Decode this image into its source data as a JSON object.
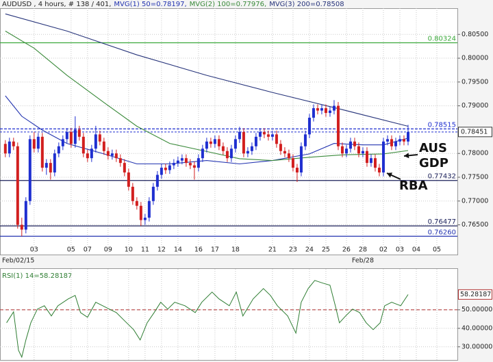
{
  "chart_data": [
    {
      "type": "candlestick",
      "title": "AUDUSD , 4 hours, # 138 / 401,",
      "up_color": "#1f2fd0",
      "down_color": "#d21f1f",
      "ohlc": [
        [
          0.782,
          0.7828,
          0.7792,
          0.78
        ],
        [
          0.78,
          0.7833,
          0.7792,
          0.7825
        ],
        [
          0.7825,
          0.7833,
          0.7807,
          0.7815
        ],
        [
          0.7815,
          0.7823,
          0.7642,
          0.765
        ],
        [
          0.765,
          0.7665,
          0.7626,
          0.764
        ],
        [
          0.764,
          0.7708,
          0.7632,
          0.77
        ],
        [
          0.77,
          0.7838,
          0.7692,
          0.783
        ],
        [
          0.783,
          0.7845,
          0.7802,
          0.781
        ],
        [
          0.781,
          0.7843,
          0.7802,
          0.7835
        ],
        [
          0.7835,
          0.7843,
          0.7762,
          0.777
        ],
        [
          0.777,
          0.7788,
          0.7755,
          0.778
        ],
        [
          0.778,
          0.7788,
          0.7745,
          0.776
        ],
        [
          0.776,
          0.7808,
          0.7752,
          0.78
        ],
        [
          0.78,
          0.7823,
          0.7792,
          0.7815
        ],
        [
          0.7815,
          0.7838,
          0.7807,
          0.783
        ],
        [
          0.783,
          0.7853,
          0.7822,
          0.7845
        ],
        [
          0.7845,
          0.7853,
          0.7812,
          0.782
        ],
        [
          0.782,
          0.7878,
          0.7812,
          0.785
        ],
        [
          0.785,
          0.7858,
          0.7827,
          0.7835
        ],
        [
          0.7835,
          0.7843,
          0.7792,
          0.78
        ],
        [
          0.78,
          0.7808,
          0.7782,
          0.779
        ],
        [
          0.779,
          0.7818,
          0.7782,
          0.781
        ],
        [
          0.781,
          0.7858,
          0.7802,
          0.784
        ],
        [
          0.784,
          0.7848,
          0.7817,
          0.7825
        ],
        [
          0.7825,
          0.7833,
          0.7797,
          0.7805
        ],
        [
          0.7805,
          0.7813,
          0.7787,
          0.7795
        ],
        [
          0.7795,
          0.7808,
          0.7787,
          0.78
        ],
        [
          0.78,
          0.7808,
          0.7782,
          0.779
        ],
        [
          0.779,
          0.7798,
          0.7772,
          0.778
        ],
        [
          0.778,
          0.7788,
          0.7752,
          0.776
        ],
        [
          0.776,
          0.7768,
          0.7722,
          0.773
        ],
        [
          0.773,
          0.7738,
          0.7692,
          0.77
        ],
        [
          0.77,
          0.7708,
          0.7682,
          0.769
        ],
        [
          0.769,
          0.7698,
          0.7648,
          0.766
        ],
        [
          0.766,
          0.7673,
          0.765,
          0.7665
        ],
        [
          0.7665,
          0.7708,
          0.7657,
          0.77
        ],
        [
          0.77,
          0.7738,
          0.7692,
          0.773
        ],
        [
          0.773,
          0.7763,
          0.7722,
          0.7755
        ],
        [
          0.7755,
          0.7778,
          0.7747,
          0.777
        ],
        [
          0.777,
          0.7778,
          0.7757,
          0.7765
        ],
        [
          0.7765,
          0.7783,
          0.7757,
          0.7775
        ],
        [
          0.7775,
          0.7788,
          0.7767,
          0.778
        ],
        [
          0.778,
          0.7793,
          0.7772,
          0.7785
        ],
        [
          0.7785,
          0.7798,
          0.7777,
          0.779
        ],
        [
          0.779,
          0.7798,
          0.7772,
          0.778
        ],
        [
          0.778,
          0.7788,
          0.7767,
          0.7775
        ],
        [
          0.7775,
          0.7783,
          0.7745,
          0.777
        ],
        [
          0.777,
          0.7798,
          0.7762,
          0.779
        ],
        [
          0.779,
          0.7818,
          0.7782,
          0.781
        ],
        [
          0.781,
          0.7833,
          0.7802,
          0.7825
        ],
        [
          0.7825,
          0.7833,
          0.7812,
          0.782
        ],
        [
          0.782,
          0.7838,
          0.7812,
          0.783
        ],
        [
          0.783,
          0.7838,
          0.7807,
          0.7815
        ],
        [
          0.7815,
          0.7823,
          0.7797,
          0.7805
        ],
        [
          0.7805,
          0.7813,
          0.7782,
          0.779
        ],
        [
          0.779,
          0.7818,
          0.7782,
          0.781
        ],
        [
          0.781,
          0.7838,
          0.7802,
          0.783
        ],
        [
          0.783,
          0.7856,
          0.7822,
          0.7845
        ],
        [
          0.7845,
          0.7853,
          0.7792,
          0.78
        ],
        [
          0.78,
          0.7813,
          0.7792,
          0.7805
        ],
        [
          0.7805,
          0.7823,
          0.7797,
          0.7815
        ],
        [
          0.7815,
          0.7843,
          0.7807,
          0.7835
        ],
        [
          0.7835,
          0.7853,
          0.7827,
          0.7845
        ],
        [
          0.7845,
          0.7853,
          0.7832,
          0.784
        ],
        [
          0.784,
          0.7848,
          0.7827,
          0.7835
        ],
        [
          0.7835,
          0.7848,
          0.7827,
          0.784
        ],
        [
          0.784,
          0.7848,
          0.7812,
          0.782
        ],
        [
          0.782,
          0.7828,
          0.7797,
          0.7805
        ],
        [
          0.7805,
          0.7813,
          0.7792,
          0.78
        ],
        [
          0.78,
          0.7808,
          0.7782,
          0.779
        ],
        [
          0.779,
          0.7798,
          0.7762,
          0.777
        ],
        [
          0.777,
          0.7778,
          0.774,
          0.776
        ],
        [
          0.776,
          0.7823,
          0.7752,
          0.7815
        ],
        [
          0.7815,
          0.7848,
          0.7807,
          0.784
        ],
        [
          0.784,
          0.7883,
          0.7832,
          0.7875
        ],
        [
          0.7875,
          0.7903,
          0.7867,
          0.7895
        ],
        [
          0.7895,
          0.7903,
          0.7882,
          0.789
        ],
        [
          0.789,
          0.7903,
          0.7882,
          0.7895
        ],
        [
          0.7895,
          0.7903,
          0.7877,
          0.7885
        ],
        [
          0.7885,
          0.7898,
          0.7877,
          0.789
        ],
        [
          0.789,
          0.7912,
          0.7882,
          0.79
        ],
        [
          0.79,
          0.7908,
          0.7807,
          0.7815
        ],
        [
          0.7815,
          0.7823,
          0.7792,
          0.78
        ],
        [
          0.78,
          0.7818,
          0.7792,
          0.781
        ],
        [
          0.781,
          0.7833,
          0.7802,
          0.7825
        ],
        [
          0.7825,
          0.7833,
          0.7807,
          0.7815
        ],
        [
          0.7815,
          0.7823,
          0.7792,
          0.78
        ],
        [
          0.78,
          0.7813,
          0.7792,
          0.7805
        ],
        [
          0.7805,
          0.7813,
          0.7772,
          0.778
        ],
        [
          0.778,
          0.7798,
          0.7772,
          0.779
        ],
        [
          0.779,
          0.7798,
          0.7762,
          0.777
        ],
        [
          0.777,
          0.7778,
          0.7752,
          0.776
        ],
        [
          0.776,
          0.7833,
          0.7752,
          0.7825
        ],
        [
          0.7825,
          0.7838,
          0.7817,
          0.783
        ],
        [
          0.783,
          0.7838,
          0.7807,
          0.7815
        ],
        [
          0.7815,
          0.7833,
          0.7807,
          0.7825
        ],
        [
          0.7825,
          0.7838,
          0.7817,
          0.783
        ],
        [
          0.783,
          0.7838,
          0.7817,
          0.7825
        ],
        [
          0.7825,
          0.786,
          0.7817,
          0.7845
        ]
      ],
      "overlays": [
        {
          "name": "MVG(1) 50=0.78197,",
          "color": "#2233b0",
          "x": [
            0,
            4,
            9,
            15,
            24,
            32,
            40,
            49,
            57,
            65,
            74,
            80,
            87,
            92,
            98
          ],
          "values": [
            0.7921,
            0.7878,
            0.7849,
            0.7821,
            0.7799,
            0.7778,
            0.7778,
            0.7785,
            0.7778,
            0.7785,
            0.7799,
            0.7821,
            0.7818,
            0.7818,
            0.7832
          ]
        },
        {
          "name": "MVG(2) 100=0.77976,",
          "color": "#3a8a3a",
          "x": [
            0,
            7,
            15,
            24,
            32,
            40,
            49,
            57,
            65,
            74,
            82,
            92,
            98
          ],
          "values": [
            0.8057,
            0.8021,
            0.7964,
            0.7907,
            0.7857,
            0.7821,
            0.7804,
            0.7789,
            0.7785,
            0.7792,
            0.7797,
            0.7799,
            0.7806
          ]
        },
        {
          "name": "MVG(3) 200=0.78508",
          "color": "#26337a",
          "x": [
            0,
            15,
            32,
            49,
            65,
            82,
            98
          ],
          "values": [
            0.8093,
            0.8057,
            0.8007,
            0.7964,
            0.7928,
            0.7892,
            0.7857
          ]
        }
      ],
      "levels": [
        {
          "value": 0.80324,
          "color": "#3aa83a",
          "style": "solid"
        },
        {
          "value": 0.78515,
          "color": "#1f2fd0",
          "style": "dashed"
        },
        {
          "value": 0.77432,
          "color": "#1a1f5a",
          "style": "solid"
        },
        {
          "value": 0.76477,
          "color": "#1a1f5a",
          "style": "solid"
        },
        {
          "value": 0.7626,
          "label": "0.76260",
          "color": "#2233b0",
          "style": "solid"
        }
      ],
      "current": 0.78451,
      "xlim": [
        -1.3,
        110
      ],
      "ylim": [
        0.7612,
        0.8105
      ],
      "yticks": [
        {
          "value": 0.805,
          "label": "0.80500"
        },
        {
          "value": 0.8,
          "label": "0.80000"
        },
        {
          "value": 0.795,
          "label": "0.79500"
        },
        {
          "value": 0.79,
          "label": "0.79000"
        },
        {
          "value": 0.78,
          "label": "0.78000"
        },
        {
          "value": 0.775,
          "label": "0.77500"
        },
        {
          "value": 0.77,
          "label": "0.77000"
        },
        {
          "value": 0.765,
          "label": "0.76500"
        }
      ],
      "xticks": [
        {
          "value": 7,
          "label": "03"
        },
        {
          "value": 16,
          "label": "05"
        },
        {
          "value": 20,
          "label": "07"
        },
        {
          "value": 25,
          "label": "09"
        },
        {
          "value": 30,
          "label": "10"
        },
        {
          "value": 34,
          "label": "11"
        },
        {
          "value": 38,
          "label": "12"
        },
        {
          "value": 42,
          "label": "14"
        },
        {
          "value": 47,
          "label": "16"
        },
        {
          "value": 51,
          "label": "17"
        },
        {
          "value": 56,
          "label": "18"
        },
        {
          "value": 65,
          "label": "21"
        },
        {
          "value": 70,
          "label": "23"
        },
        {
          "value": 74,
          "label": "24"
        },
        {
          "value": 78,
          "label": "25"
        },
        {
          "value": 83,
          "label": "26"
        },
        {
          "value": 87,
          "label": "28"
        },
        {
          "value": 92,
          "label": "02"
        },
        {
          "value": 96,
          "label": "03"
        },
        {
          "value": 100,
          "label": "04"
        },
        {
          "value": 105,
          "label": "05"
        }
      ],
      "date_labels": [
        {
          "value": 0,
          "label": "Feb/02/15"
        },
        {
          "value": 87,
          "label": "Feb/28"
        }
      ],
      "annotations": [
        {
          "lines": [
            "AUS",
            "GDP"
          ]
        },
        {
          "lines": [
            "RBA"
          ]
        }
      ],
      "grid": true
    },
    {
      "type": "line",
      "title": "RSI(1) 14=58.28187",
      "series": [
        {
          "color": "#2e7d32",
          "x": [
            0.3,
            2,
            3.2,
            4,
            5,
            6.2,
            7.8,
            9.5,
            11.2,
            12.8,
            15.3,
            17,
            18.3,
            20,
            22,
            23.7,
            25.3,
            27,
            29.5,
            31.2,
            32.8,
            34.5,
            36.2,
            37.8,
            39.5,
            41.2,
            43.7,
            46.2,
            47.8,
            50.3,
            52,
            54.5,
            56.2,
            57.8,
            60.3,
            62.8,
            64.5,
            66.2,
            68.7,
            70.7,
            72,
            73.7,
            75.3,
            77.3,
            79,
            80.3,
            81.3,
            82.8,
            84.5,
            86.2,
            87.8,
            89.5,
            91.2,
            92.3,
            94,
            96.2,
            98
          ],
          "values": [
            43.0,
            48.9,
            28.1,
            24.4,
            33.7,
            43.0,
            50.4,
            52.2,
            46.7,
            52.2,
            55.9,
            57.8,
            48.5,
            46.0,
            54.1,
            52.2,
            50.4,
            48.5,
            43.0,
            39.3,
            33.7,
            43.0,
            48.5,
            54.1,
            50.4,
            54.1,
            52.2,
            48.5,
            54.1,
            59.6,
            55.9,
            52.2,
            59.6,
            46.7,
            55.9,
            61.5,
            57.8,
            52.2,
            46.7,
            37.4,
            54.1,
            61.5,
            65.9,
            64.4,
            63.3,
            52.2,
            43.0,
            46.7,
            50.4,
            48.5,
            43.0,
            39.3,
            43.0,
            52.2,
            54.1,
            52.2,
            58.28187
          ]
        }
      ],
      "current": 58.28187,
      "reference_line": {
        "value": 50,
        "color": "#b03030"
      },
      "xlim": [
        -1.3,
        110
      ],
      "ylim": [
        24,
        71
      ],
      "yticks": [
        {
          "value": 50,
          "label": "50.00000"
        },
        {
          "value": 40,
          "label": "40.00000"
        },
        {
          "value": 30,
          "label": "30.00000"
        }
      ],
      "grid": true
    }
  ]
}
